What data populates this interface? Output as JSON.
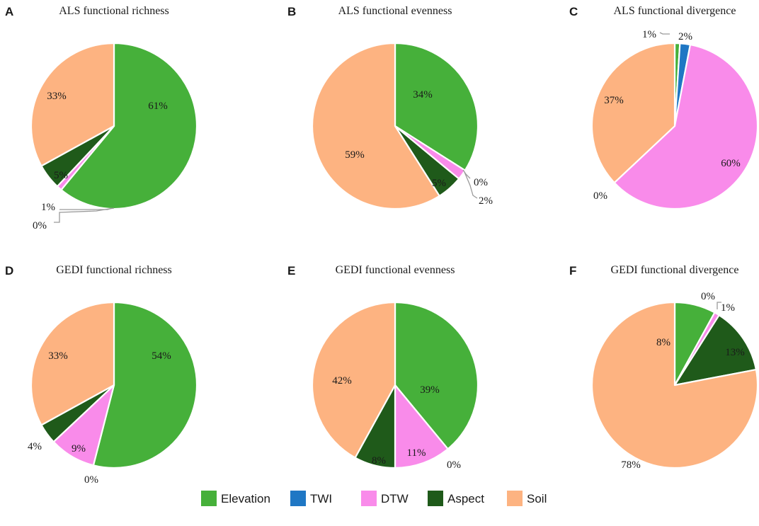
{
  "chart_data": [
    {
      "type": "pie",
      "panel": "A",
      "title": "ALS functional richness",
      "slices": [
        {
          "category": "Elevation",
          "value": 61,
          "label": "61%"
        },
        {
          "category": "TWI",
          "value": 0,
          "label": "0%"
        },
        {
          "category": "DTW",
          "value": 1,
          "label": "1%"
        },
        {
          "category": "Aspect",
          "value": 5,
          "label": "5%"
        },
        {
          "category": "Soil",
          "value": 33,
          "label": "33%"
        }
      ]
    },
    {
      "type": "pie",
      "panel": "B",
      "title": "ALS functional evenness",
      "slices": [
        {
          "category": "Elevation",
          "value": 34,
          "label": "34%"
        },
        {
          "category": "TWI",
          "value": 0,
          "label": "0%"
        },
        {
          "category": "DTW",
          "value": 2,
          "label": "2%"
        },
        {
          "category": "Aspect",
          "value": 5,
          "label": "5%"
        },
        {
          "category": "Soil",
          "value": 59,
          "label": "59%"
        }
      ]
    },
    {
      "type": "pie",
      "panel": "C",
      "title": "ALS functional divergence",
      "slices": [
        {
          "category": "Elevation",
          "value": 1,
          "label": "1%"
        },
        {
          "category": "TWI",
          "value": 2,
          "label": "2%"
        },
        {
          "category": "DTW",
          "value": 60,
          "label": "60%"
        },
        {
          "category": "Aspect",
          "value": 0,
          "label": "0%"
        },
        {
          "category": "Soil",
          "value": 37,
          "label": "37%"
        }
      ]
    },
    {
      "type": "pie",
      "panel": "D",
      "title": "GEDI functional richness",
      "slices": [
        {
          "category": "Elevation",
          "value": 54,
          "label": "54%"
        },
        {
          "category": "TWI",
          "value": 0,
          "label": "0%"
        },
        {
          "category": "DTW",
          "value": 9,
          "label": "9%"
        },
        {
          "category": "Aspect",
          "value": 4,
          "label": "4%"
        },
        {
          "category": "Soil",
          "value": 33,
          "label": "33%"
        }
      ]
    },
    {
      "type": "pie",
      "panel": "E",
      "title": "GEDI functional evenness",
      "slices": [
        {
          "category": "Elevation",
          "value": 39,
          "label": "39%"
        },
        {
          "category": "TWI",
          "value": 0,
          "label": "0%"
        },
        {
          "category": "DTW",
          "value": 11,
          "label": "11%"
        },
        {
          "category": "Aspect",
          "value": 8,
          "label": "8%"
        },
        {
          "category": "Soil",
          "value": 42,
          "label": "42%"
        }
      ]
    },
    {
      "type": "pie",
      "panel": "F",
      "title": "GEDI functional divergence",
      "slices": [
        {
          "category": "Elevation",
          "value": 8,
          "label": "8%"
        },
        {
          "category": "TWI",
          "value": 0,
          "label": "0%"
        },
        {
          "category": "DTW",
          "value": 1,
          "label": "1%"
        },
        {
          "category": "Aspect",
          "value": 13,
          "label": "13%"
        },
        {
          "category": "Soil",
          "value": 78,
          "label": "78%"
        }
      ]
    }
  ],
  "legend": [
    {
      "name": "Elevation",
      "color": "#46b03a"
    },
    {
      "name": "TWI",
      "color": "#1f77c4"
    },
    {
      "name": "DTW",
      "color": "#f98bea"
    },
    {
      "name": "Aspect",
      "color": "#1f5a1a"
    },
    {
      "name": "Soil",
      "color": "#fdb381"
    }
  ]
}
